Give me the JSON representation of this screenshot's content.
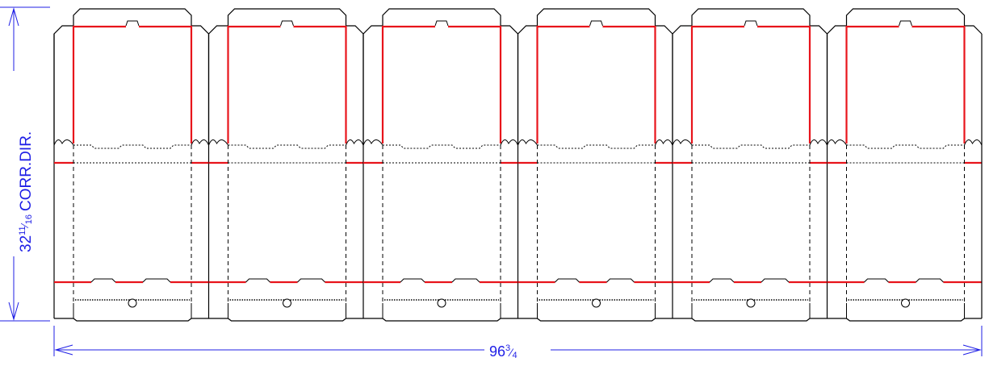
{
  "drawing": {
    "panel_count": 6,
    "colors": {
      "cut_line": "#000000",
      "crease_red": "#e8141b",
      "dimension": "#1f1fe6",
      "background": "#ffffff"
    }
  },
  "dimensions": {
    "width": {
      "whole": "96",
      "num": "3",
      "den": "4"
    },
    "height": {
      "whole": "32",
      "num": "11",
      "den": "16",
      "suffix": "CORR.DIR."
    }
  }
}
